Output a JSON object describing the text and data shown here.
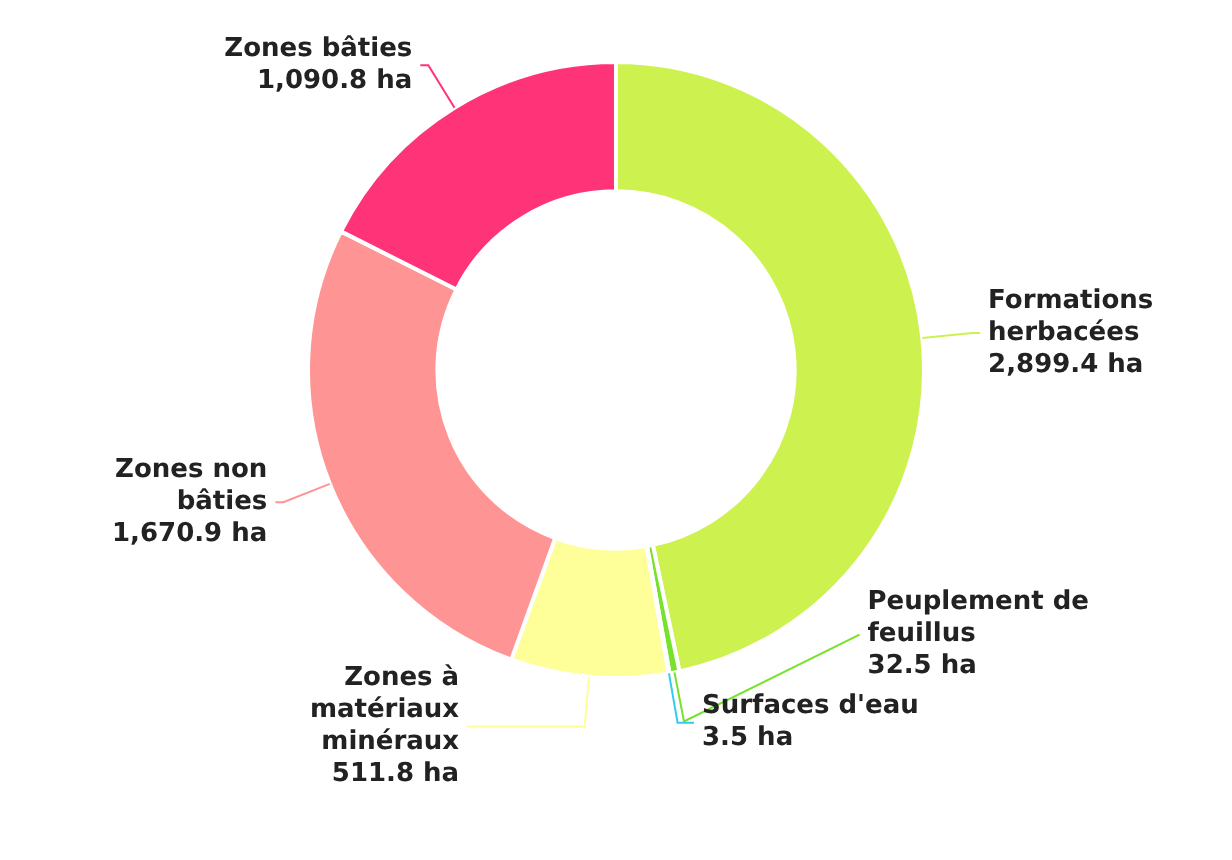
{
  "chart_data": {
    "type": "donut",
    "categories": [
      "Formations herbacées",
      "Peuplement de feuillus",
      "Surfaces d'eau",
      "Zones à matériaux minéraux",
      "Zones non bâties",
      "Zones bâties"
    ],
    "values": [
      2899.4,
      32.5,
      3.5,
      511.8,
      1670.9,
      1090.8
    ],
    "value_labels": [
      "2,899.4 ha",
      "32.5 ha",
      "3.5 ha",
      "511.8 ha",
      "1,670.9 ha",
      "1,090.8 ha"
    ],
    "colors": [
      "#cdf24f",
      "#77e22a",
      "#33ccee",
      "#ffff99",
      "#ff9494",
      "#ff3377"
    ],
    "legend": false
  }
}
